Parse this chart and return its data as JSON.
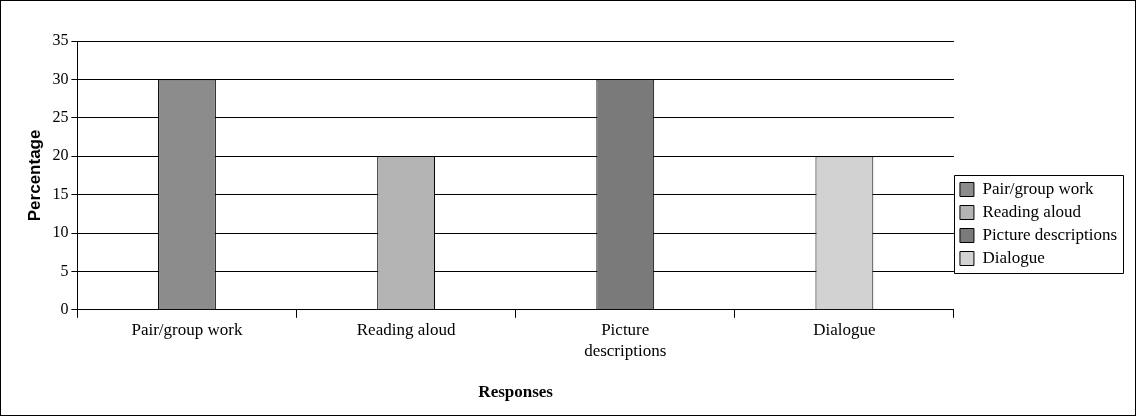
{
  "chart_data": {
    "type": "bar",
    "xlabel": "Responses",
    "ylabel": "Percentage",
    "categories": [
      "Pair/group work",
      "Reading aloud",
      "Picture descriptions",
      "Dialogue"
    ],
    "series": [
      {
        "name": "Pair/group work",
        "color": "#8c8c8c",
        "values": [
          30,
          null,
          null,
          null
        ]
      },
      {
        "name": "Reading aloud",
        "color": "#b4b4b4",
        "values": [
          null,
          20,
          null,
          null
        ]
      },
      {
        "name": "Picture descriptions",
        "color": "#7a7a7a",
        "values": [
          null,
          null,
          30,
          null
        ]
      },
      {
        "name": "Dialogue",
        "color": "#d2d2d2",
        "values": [
          null,
          null,
          null,
          20
        ]
      }
    ],
    "ylim": [
      0,
      35
    ],
    "yticks": [
      0,
      5,
      10,
      15,
      20,
      25,
      30,
      35
    ],
    "grid": "y",
    "legend": "right"
  }
}
